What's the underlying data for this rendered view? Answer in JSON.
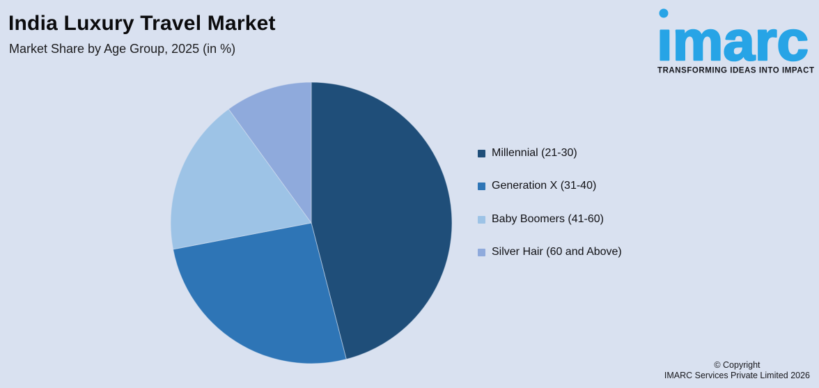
{
  "header": {
    "title": "India Luxury Travel Market",
    "subtitle": "Market Share by Age Group, 2025 (in %)"
  },
  "logo": {
    "text": "imarc",
    "tagline": "TRANSFORMING IDEAS INTO IMPACT",
    "color": "#27A4E6"
  },
  "footer": {
    "line1": "© Copyright",
    "line2": "IMARC Services Private Limited 2026"
  },
  "chart_data": {
    "type": "pie",
    "title": "India Luxury Travel Market",
    "subtitle": "Market Share by Age Group, 2025 (in %)",
    "categories": [
      "Millennial (21-30)",
      "Generation X (31-40)",
      "Baby Boomers (41-60)",
      "Silver Hair (60 and Above)"
    ],
    "values": [
      46,
      26,
      18,
      10
    ],
    "unit": "%",
    "colors": [
      "#1F4E79",
      "#2E75B6",
      "#9DC3E6",
      "#8FAADC"
    ],
    "background": "#D9E1F0",
    "start_angle_deg": 0,
    "direction": "clockwise",
    "legend_position": "right",
    "data_labels": false
  }
}
